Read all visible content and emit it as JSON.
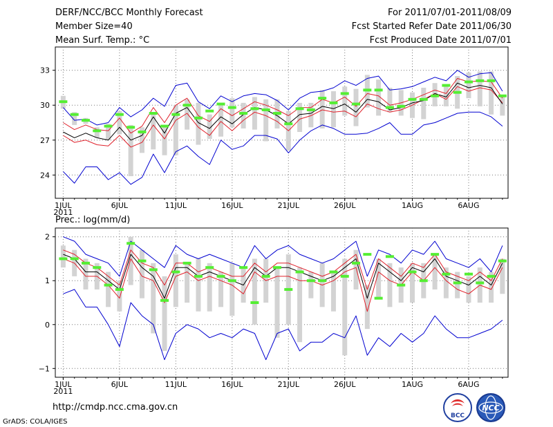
{
  "header": {
    "title": "DERF/NCC/BCC Monthly Forecast",
    "member": "Member Size=40",
    "variable": "Mean Surf. Temp.: °C",
    "period": "For 2011/07/01-2011/08/09",
    "started": "Fcst Started Refer Date 2011/06/30",
    "produced": "Fcst Produced Date 2011/07/01"
  },
  "footer": {
    "url": "http://cmdp.ncc.cma.gov.cn",
    "grads": "GrADS: COLA/IGES",
    "logo1_text": "BCC",
    "logo2_text": "NCC"
  },
  "colors": {
    "grid": "#777777",
    "median": "#000000",
    "quartile": "#e0202a",
    "extreme": "#0000d0",
    "box": "#d3d3d3",
    "obs": "#55ee33"
  },
  "chart_data": [
    {
      "type": "line",
      "title": "Mean Surf. Temp.: °C",
      "x_tick_labels": [
        "1JUL",
        "6JUL",
        "11JUL",
        "16JUL",
        "21JUL",
        "26JUL",
        "1AUG",
        "6AUG"
      ],
      "x_tick_days": [
        1,
        6,
        11,
        16,
        21,
        26,
        32,
        37
      ],
      "year_label": "2011",
      "xlim": [
        0.3,
        40.5
      ],
      "ylim": [
        22,
        35
      ],
      "y_ticks": [
        24,
        27,
        30,
        33
      ],
      "days": [
        1,
        2,
        3,
        4,
        5,
        6,
        7,
        8,
        9,
        10,
        11,
        12,
        13,
        14,
        15,
        16,
        17,
        18,
        19,
        20,
        21,
        22,
        23,
        24,
        25,
        26,
        27,
        28,
        29,
        30,
        31,
        32,
        33,
        34,
        35,
        36,
        37,
        38,
        39,
        40
      ],
      "series": [
        {
          "name": "max",
          "values": [
            24.3,
            23.3,
            24.7,
            24.7,
            23.6,
            24.2,
            23.2,
            23.8,
            25.8,
            24.2,
            26.0,
            26.5,
            25.6,
            24.9,
            27.0,
            26.2,
            26.5,
            27.4,
            27.4,
            27.1,
            25.9,
            27.0,
            27.8,
            28.3,
            28.0,
            27.5,
            27.5,
            27.6,
            28.0,
            28.5,
            27.5,
            27.5,
            28.3,
            28.5,
            28.9,
            29.3,
            29.4,
            29.4,
            29.0,
            28.2
          ]
        },
        {
          "name": "q90",
          "values": [
            27.4,
            26.8,
            27.0,
            26.6,
            26.5,
            27.4,
            26.4,
            26.8,
            28.3,
            27.1,
            28.7,
            29.3,
            28.1,
            27.4,
            28.6,
            27.8,
            28.7,
            29.4,
            29.1,
            28.6,
            27.8,
            28.8,
            29.1,
            29.6,
            29.4,
            29.5,
            29.0,
            30.1,
            29.7,
            29.4,
            29.6,
            30.0,
            30.5,
            31.0,
            30.5,
            31.6,
            31.2,
            31.5,
            31.3,
            30.2
          ]
        },
        {
          "name": "median",
          "values": [
            27.7,
            27.2,
            27.6,
            27.2,
            27.0,
            28.1,
            27.0,
            27.4,
            29.0,
            27.6,
            29.3,
            29.8,
            28.5,
            28.0,
            29.0,
            28.4,
            29.2,
            29.8,
            29.6,
            29.1,
            28.4,
            29.2,
            29.3,
            29.9,
            29.7,
            30.1,
            29.4,
            30.5,
            30.3,
            29.6,
            29.8,
            30.2,
            30.4,
            31.0,
            30.7,
            31.9,
            31.5,
            31.7,
            31.5,
            30.1
          ]
        },
        {
          "name": "q10",
          "values": [
            28.5,
            27.9,
            28.3,
            27.9,
            27.8,
            28.9,
            27.6,
            28.2,
            29.8,
            28.5,
            30.0,
            30.6,
            29.1,
            28.6,
            29.7,
            29.1,
            29.7,
            30.3,
            30.0,
            29.6,
            29.1,
            29.8,
            29.8,
            30.5,
            30.2,
            30.7,
            29.9,
            31.0,
            30.8,
            30.0,
            30.2,
            30.5,
            30.9,
            31.3,
            31.0,
            32.3,
            32.0,
            32.1,
            32.0,
            30.6
          ]
        },
        {
          "name": "min",
          "values": [
            29.8,
            28.7,
            28.8,
            28.3,
            28.5,
            29.8,
            29.0,
            29.6,
            30.6,
            29.9,
            31.7,
            31.9,
            30.3,
            29.7,
            30.8,
            30.3,
            30.8,
            31.0,
            30.9,
            30.4,
            29.6,
            30.6,
            31.1,
            31.2,
            31.5,
            32.1,
            31.7,
            32.3,
            32.5,
            31.3,
            31.4,
            31.6,
            32.0,
            32.4,
            32.1,
            33.0,
            32.4,
            32.7,
            32.8,
            31.2
          ]
        }
      ],
      "boxes": [
        [
          29.7,
          30.8
        ],
        [
          28.3,
          29.4
        ],
        [
          28.4,
          28.9
        ],
        [
          27.2,
          28.1
        ],
        [
          27.0,
          28.4
        ],
        [
          27.5,
          29.5
        ],
        [
          23.9,
          28.3
        ],
        [
          25.9,
          28.1
        ],
        [
          26.2,
          29.4
        ],
        [
          25.7,
          28.1
        ],
        [
          25.7,
          30.0
        ],
        [
          27.9,
          30.5
        ],
        [
          26.6,
          30.2
        ],
        [
          27.1,
          29.2
        ],
        [
          27.3,
          30.0
        ],
        [
          28.1,
          30.6
        ],
        [
          28.0,
          30.2
        ],
        [
          27.9,
          30.7
        ],
        [
          26.9,
          30.5
        ],
        [
          28.0,
          30.5
        ],
        [
          26.1,
          29.5
        ],
        [
          27.7,
          30.2
        ],
        [
          28.1,
          30.2
        ],
        [
          28.0,
          31.3
        ],
        [
          28.1,
          31.2
        ],
        [
          29.1,
          31.6
        ],
        [
          28.2,
          31.4
        ],
        [
          29.8,
          32.6
        ],
        [
          29.1,
          32.2
        ],
        [
          29.4,
          31.5
        ],
        [
          29.1,
          31.3
        ],
        [
          28.9,
          31.1
        ],
        [
          28.8,
          31.5
        ],
        [
          29.9,
          31.9
        ],
        [
          29.9,
          31.7
        ],
        [
          29.7,
          32.5
        ],
        [
          30.6,
          32.8
        ],
        [
          29.9,
          32.9
        ],
        [
          29.2,
          32.9
        ],
        [
          29.1,
          30.8
        ]
      ],
      "observed": [
        30.3,
        29.2,
        28.7,
        27.8,
        28.2,
        29.2,
        28.1,
        27.7,
        29.3,
        28.2,
        29.2,
        30.0,
        28.9,
        29.5,
        30.1,
        29.8,
        29.3,
        29.7,
        29.6,
        29.3,
        28.4,
        29.7,
        29.6,
        30.6,
        30.2,
        31.0,
        30.1,
        31.3,
        31.3,
        29.8,
        29.9,
        30.5,
        30.5,
        30.8,
        31.7,
        31.1,
        32.0,
        32.1,
        32.1,
        30.8
      ]
    },
    {
      "type": "line",
      "title": "Prec.: log(mm/d)",
      "x_tick_labels": [
        "1JUL",
        "6JUL",
        "11JUL",
        "16JUL",
        "21JUL",
        "26JUL",
        "1AUG",
        "6AUG"
      ],
      "x_tick_days": [
        1,
        6,
        11,
        16,
        21,
        26,
        32,
        37
      ],
      "year_label": "2011",
      "xlim": [
        0.3,
        40.5
      ],
      "ylim": [
        -1.2,
        2.2
      ],
      "y_ticks": [
        -1,
        0,
        1,
        2
      ],
      "days": [
        1,
        2,
        3,
        4,
        5,
        6,
        7,
        8,
        9,
        10,
        11,
        12,
        13,
        14,
        15,
        16,
        17,
        18,
        19,
        20,
        21,
        22,
        23,
        24,
        25,
        26,
        27,
        28,
        29,
        30,
        31,
        32,
        33,
        34,
        35,
        36,
        37,
        38,
        39,
        40
      ],
      "series": [
        {
          "name": "max",
          "values": [
            2.0,
            1.9,
            1.6,
            1.5,
            1.4,
            1.1,
            1.9,
            1.7,
            1.5,
            1.3,
            1.8,
            1.6,
            1.5,
            1.6,
            1.5,
            1.4,
            1.3,
            1.8,
            1.5,
            1.7,
            1.8,
            1.6,
            1.5,
            1.4,
            1.5,
            1.7,
            1.9,
            1.1,
            1.7,
            1.6,
            1.4,
            1.7,
            1.6,
            1.9,
            1.5,
            1.4,
            1.3,
            1.5,
            1.2,
            1.8
          ]
        },
        {
          "name": "q90",
          "values": [
            1.7,
            1.6,
            1.4,
            1.3,
            1.1,
            0.9,
            1.7,
            1.4,
            1.3,
            0.9,
            1.4,
            1.4,
            1.2,
            1.3,
            1.2,
            1.1,
            1.1,
            1.4,
            1.2,
            1.4,
            1.4,
            1.3,
            1.2,
            1.1,
            1.2,
            1.4,
            1.6,
            0.8,
            1.5,
            1.3,
            1.1,
            1.4,
            1.3,
            1.6,
            1.2,
            1.1,
            1.0,
            1.2,
            1.0,
            1.5
          ]
        },
        {
          "name": "median",
          "values": [
            1.6,
            1.5,
            1.2,
            1.2,
            1.0,
            0.8,
            1.6,
            1.3,
            1.1,
            0.6,
            1.3,
            1.3,
            1.1,
            1.2,
            1.1,
            1.0,
            0.9,
            1.3,
            1.1,
            1.3,
            1.3,
            1.2,
            1.1,
            1.0,
            1.1,
            1.3,
            1.5,
            0.6,
            1.4,
            1.2,
            1.0,
            1.3,
            1.2,
            1.5,
            1.1,
            1.0,
            0.9,
            1.1,
            0.9,
            1.4
          ]
        },
        {
          "name": "q10",
          "values": [
            1.5,
            1.4,
            1.1,
            1.1,
            0.9,
            0.6,
            1.5,
            1.1,
            1.0,
            0.5,
            1.1,
            1.2,
            1.0,
            1.1,
            1.0,
            0.9,
            0.7,
            1.2,
            1.0,
            1.1,
            1.1,
            1.0,
            1.0,
            0.9,
            1.0,
            1.2,
            1.3,
            0.3,
            1.2,
            1.0,
            0.9,
            1.2,
            1.0,
            1.3,
            1.0,
            0.8,
            0.7,
            0.9,
            0.8,
            1.3
          ]
        },
        {
          "name": "min",
          "values": [
            0.7,
            0.8,
            0.4,
            0.4,
            0.0,
            -0.5,
            0.5,
            0.2,
            0.0,
            -0.8,
            -0.2,
            0.0,
            -0.1,
            -0.3,
            -0.2,
            -0.3,
            -0.1,
            -0.2,
            -0.8,
            -0.2,
            -0.1,
            -0.6,
            -0.4,
            -0.4,
            -0.2,
            -0.3,
            0.2,
            -0.7,
            -0.3,
            -0.5,
            -0.2,
            -0.4,
            -0.2,
            0.2,
            -0.1,
            -0.3,
            -0.3,
            -0.2,
            -0.1,
            0.1
          ]
        }
      ],
      "boxes": [
        [
          1.3,
          1.8
        ],
        [
          1.1,
          1.7
        ],
        [
          0.8,
          1.5
        ],
        [
          0.8,
          1.4
        ],
        [
          0.4,
          1.2
        ],
        [
          0.3,
          1.0
        ],
        [
          0.9,
          2.0
        ],
        [
          0.6,
          1.7
        ],
        [
          -0.2,
          1.4
        ],
        [
          -0.6,
          1.1
        ],
        [
          0.4,
          1.6
        ],
        [
          0.5,
          1.4
        ],
        [
          0.3,
          1.5
        ],
        [
          0.3,
          1.4
        ],
        [
          0.4,
          1.2
        ],
        [
          0.2,
          1.4
        ],
        [
          0.5,
          1.3
        ],
        [
          0.0,
          1.5
        ],
        [
          0.5,
          1.5
        ],
        [
          -0.3,
          1.3
        ],
        [
          0.0,
          1.6
        ],
        [
          -0.4,
          1.3
        ],
        [
          0.6,
          1.2
        ],
        [
          0.4,
          1.4
        ],
        [
          0.3,
          1.2
        ],
        [
          -0.7,
          1.5
        ],
        [
          0.8,
          1.7
        ],
        [
          -0.1,
          0.9
        ],
        [
          0.6,
          1.5
        ],
        [
          0.4,
          1.4
        ],
        [
          0.5,
          1.3
        ],
        [
          0.5,
          1.4
        ],
        [
          0.6,
          1.4
        ],
        [
          0.8,
          1.6
        ],
        [
          0.6,
          1.3
        ],
        [
          0.6,
          1.2
        ],
        [
          0.5,
          1.1
        ],
        [
          0.5,
          1.3
        ],
        [
          0.5,
          1.2
        ],
        [
          0.7,
          1.5
        ]
      ],
      "observed": [
        1.5,
        1.5,
        1.4,
        1.3,
        0.9,
        0.8,
        1.85,
        1.45,
        1.25,
        0.55,
        1.2,
        1.4,
        1.1,
        1.3,
        1.1,
        1.0,
        1.3,
        0.5,
        1.1,
        1.3,
        0.8,
        1.2,
        1.0,
        1.0,
        1.2,
        1.1,
        1.4,
        1.6,
        0.6,
        1.55,
        0.9,
        1.2,
        1.0,
        1.6,
        1.15,
        0.95,
        1.15,
        0.95,
        1.1,
        1.45
      ]
    }
  ]
}
